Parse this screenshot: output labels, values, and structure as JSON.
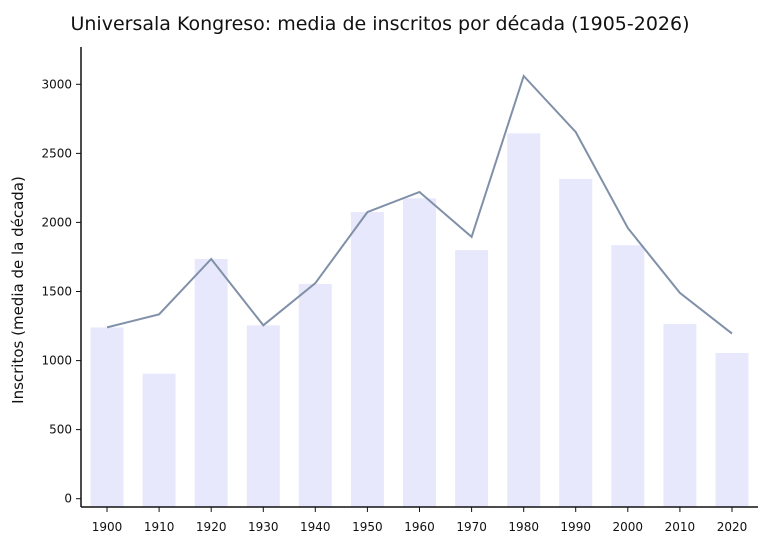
{
  "chart_data": {
    "type": "bar",
    "title": "Universala Kongreso: media de inscritos por década (1905-2026)",
    "xlabel": "",
    "ylabel": "Inscritos (media de la década)",
    "categories": [
      "1900",
      "1910",
      "1920",
      "1930",
      "1940",
      "1950",
      "1960",
      "1970",
      "1980",
      "1990",
      "2000",
      "2010",
      "2020"
    ],
    "series": [
      {
        "type": "bar",
        "values": [
          1240,
          905,
          1735,
          1255,
          1555,
          2075,
          2175,
          1800,
          2645,
          2315,
          1835,
          1265,
          1055
        ]
      },
      {
        "type": "line",
        "values": [
          1240,
          1335,
          1735,
          1255,
          1560,
          2075,
          2220,
          1895,
          3060,
          2655,
          1960,
          1490,
          1195
        ]
      }
    ],
    "ylim": [
      -60,
      3270
    ],
    "yticks": [
      0,
      500,
      1000,
      1500,
      2000,
      2500,
      3000
    ],
    "grid": false,
    "colors": {
      "bar": "#e8e8fc",
      "line": "#8090a8",
      "axis": "#111111"
    }
  }
}
